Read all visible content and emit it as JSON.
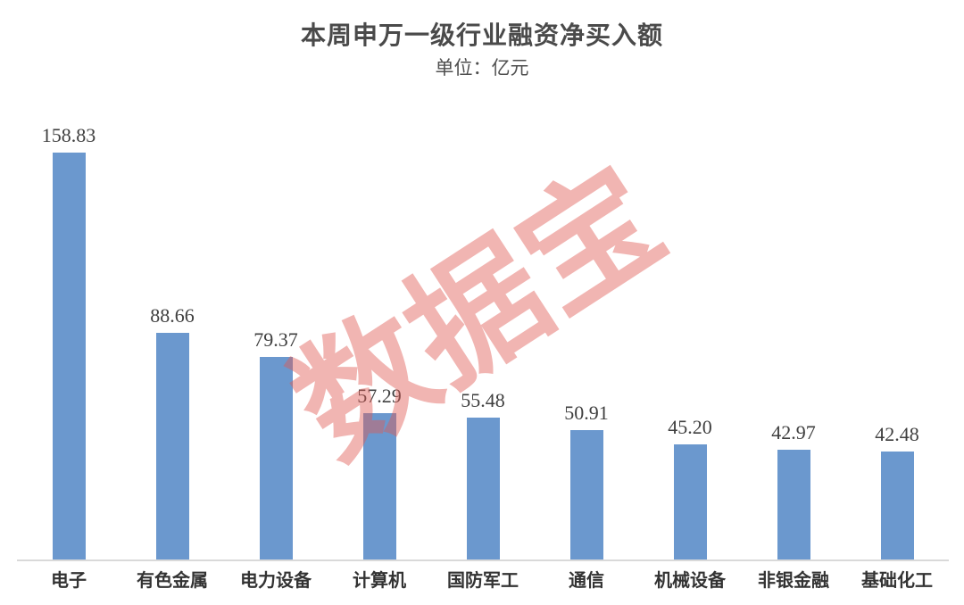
{
  "title": "本周申万一级行业融资净买入额",
  "subtitle": "单位：亿元",
  "watermark": "数据宝",
  "chart_data": {
    "type": "bar",
    "title": "本周申万一级行业融资净买入额",
    "subtitle": "单位：亿元",
    "xlabel": "",
    "ylabel": "亿元",
    "ylim": [
      0,
      170
    ],
    "grid": false,
    "legend": "none",
    "data_labels": true,
    "categories": [
      "电子",
      "有色金属",
      "电力设备",
      "计算机",
      "国防军工",
      "通信",
      "机械设备",
      "非银金融",
      "基础化工"
    ],
    "values": [
      158.83,
      88.66,
      79.37,
      57.29,
      55.48,
      50.91,
      45.2,
      42.97,
      42.48
    ],
    "value_labels": [
      "158.83",
      "88.66",
      "79.37",
      "57.29",
      "55.48",
      "50.91",
      "45.20",
      "42.97",
      "42.48"
    ]
  },
  "colors": {
    "bar": "#6b98ce",
    "axis_line": "#d9d9d9",
    "value_text": "#3f3f3f",
    "category_text": "#333333",
    "title_text": "#4a4a4a",
    "watermark_base": "#e05a54",
    "watermark_opacity": 0.45,
    "background": "#ffffff"
  }
}
